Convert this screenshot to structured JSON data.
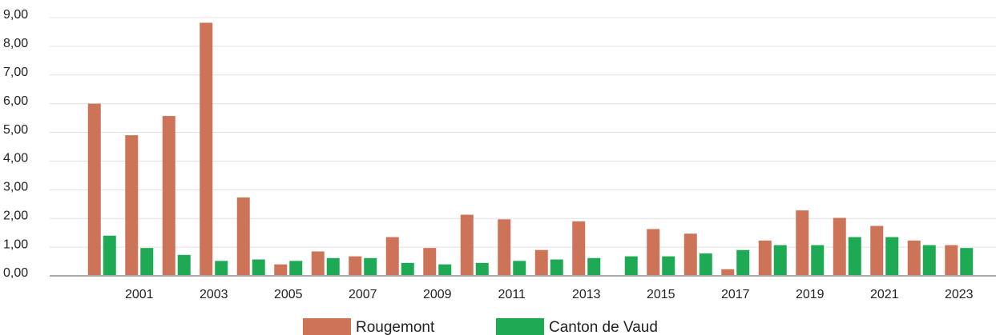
{
  "chart_data": {
    "type": "bar",
    "categories": [
      null,
      "2001",
      null,
      "2003",
      null,
      "2005",
      null,
      "2007",
      null,
      "2009",
      null,
      "2011",
      null,
      "2013",
      null,
      "2015",
      null,
      "2017",
      null,
      "2019",
      null,
      "2021",
      null,
      "2023"
    ],
    "series": [
      {
        "name": "Rougemont",
        "color": "#cd7358",
        "values": [
          6.0,
          4.9,
          5.57,
          8.82,
          2.73,
          0.4,
          0.85,
          0.68,
          1.35,
          0.97,
          2.13,
          1.97,
          0.9,
          1.9,
          0,
          1.63,
          1.47,
          0.23,
          1.23,
          2.28,
          2.02,
          1.74,
          1.23,
          1.07
        ]
      },
      {
        "name": "Canton de Vaud",
        "color": "#1eaa55",
        "values": [
          1.4,
          0.97,
          0.73,
          0.52,
          0.57,
          0.52,
          0.62,
          0.62,
          0.45,
          0.4,
          0.45,
          0.52,
          0.57,
          0.62,
          0.68,
          0.68,
          0.78,
          0.9,
          1.07,
          1.07,
          1.35,
          1.35,
          1.07,
          0.97
        ]
      }
    ],
    "ylim": [
      0,
      9
    ],
    "yticks": [
      {
        "value": 0,
        "label": "0,00"
      },
      {
        "value": 1,
        "label": "1,00"
      },
      {
        "value": 2,
        "label": "2,00"
      },
      {
        "value": 3,
        "label": "3,00"
      },
      {
        "value": 4,
        "label": "4,00"
      },
      {
        "value": 5,
        "label": "5,00"
      },
      {
        "value": 6,
        "label": "6,00"
      },
      {
        "value": 7,
        "label": "7,00"
      },
      {
        "value": 8,
        "label": "8,00"
      },
      {
        "value": 9,
        "label": "9,00"
      }
    ],
    "grid": true,
    "legend": "bottom"
  }
}
